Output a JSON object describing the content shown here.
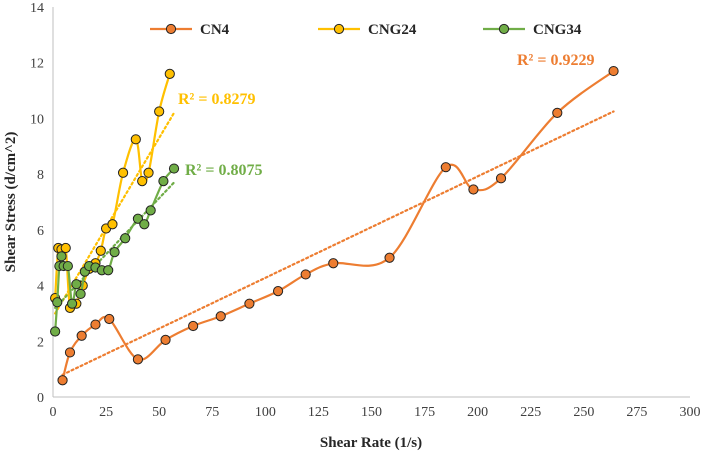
{
  "chart_data": {
    "type": "scatter",
    "title": "",
    "xlabel": "Shear Rate (1/s)",
    "ylabel": "Shear Stress (d/cm^2)",
    "xlim": [
      0,
      300
    ],
    "ylim": [
      0,
      14
    ],
    "xticks": [
      0,
      25,
      50,
      75,
      100,
      125,
      150,
      175,
      200,
      225,
      250,
      275,
      300
    ],
    "yticks": [
      0,
      2,
      4,
      6,
      8,
      10,
      12,
      14
    ],
    "grid": false,
    "legend_position": "top",
    "series": [
      {
        "name": "CN4",
        "color": "#ED7D31",
        "x": [
          4.5,
          8,
          13.5,
          20,
          26.5,
          40,
          53,
          66,
          79,
          92.5,
          106,
          119,
          132,
          158.5,
          185,
          198,
          211,
          237.5,
          264
        ],
        "y": [
          0.6,
          1.6,
          2.2,
          2.6,
          2.8,
          1.35,
          2.05,
          2.55,
          2.9,
          3.35,
          3.8,
          4.4,
          4.8,
          5.0,
          8.25,
          7.45,
          7.85,
          10.2,
          11.7
        ],
        "r2_label": "R² = 0.9229",
        "trendline": {
          "x": [
            4.5,
            264
          ],
          "y": [
            0.8,
            10.25
          ]
        }
      },
      {
        "name": "CNG24",
        "color": "#FFC000",
        "x": [
          1,
          2.5,
          4,
          6,
          8,
          11,
          14,
          17,
          20,
          22.5,
          25,
          28,
          33,
          39,
          42,
          45,
          50,
          55
        ],
        "y": [
          3.55,
          5.35,
          5.3,
          5.35,
          3.2,
          3.35,
          4.0,
          4.6,
          4.8,
          5.25,
          6.05,
          6.2,
          8.05,
          9.25,
          7.75,
          8.05,
          10.25,
          11.6
        ],
        "r2_label": "R² = 0.8279",
        "trendline": {
          "x": [
            1,
            57
          ],
          "y": [
            3.0,
            10.2
          ]
        }
      },
      {
        "name": "CNG34",
        "color": "#70AD47",
        "x": [
          1,
          2,
          3,
          4,
          5,
          7,
          9,
          11,
          13,
          15,
          17,
          20,
          23,
          26,
          29,
          34,
          40,
          43,
          46,
          52,
          57
        ],
        "y": [
          2.35,
          3.4,
          4.7,
          5.05,
          4.7,
          4.7,
          3.35,
          4.05,
          3.7,
          4.5,
          4.7,
          4.65,
          4.55,
          4.55,
          5.2,
          5.7,
          6.4,
          6.2,
          6.7,
          7.75,
          8.2
        ],
        "r2_label": "R² = 0.8075",
        "trendline": {
          "x": [
            1,
            57
          ],
          "y": [
            3.2,
            7.7
          ]
        }
      }
    ]
  }
}
